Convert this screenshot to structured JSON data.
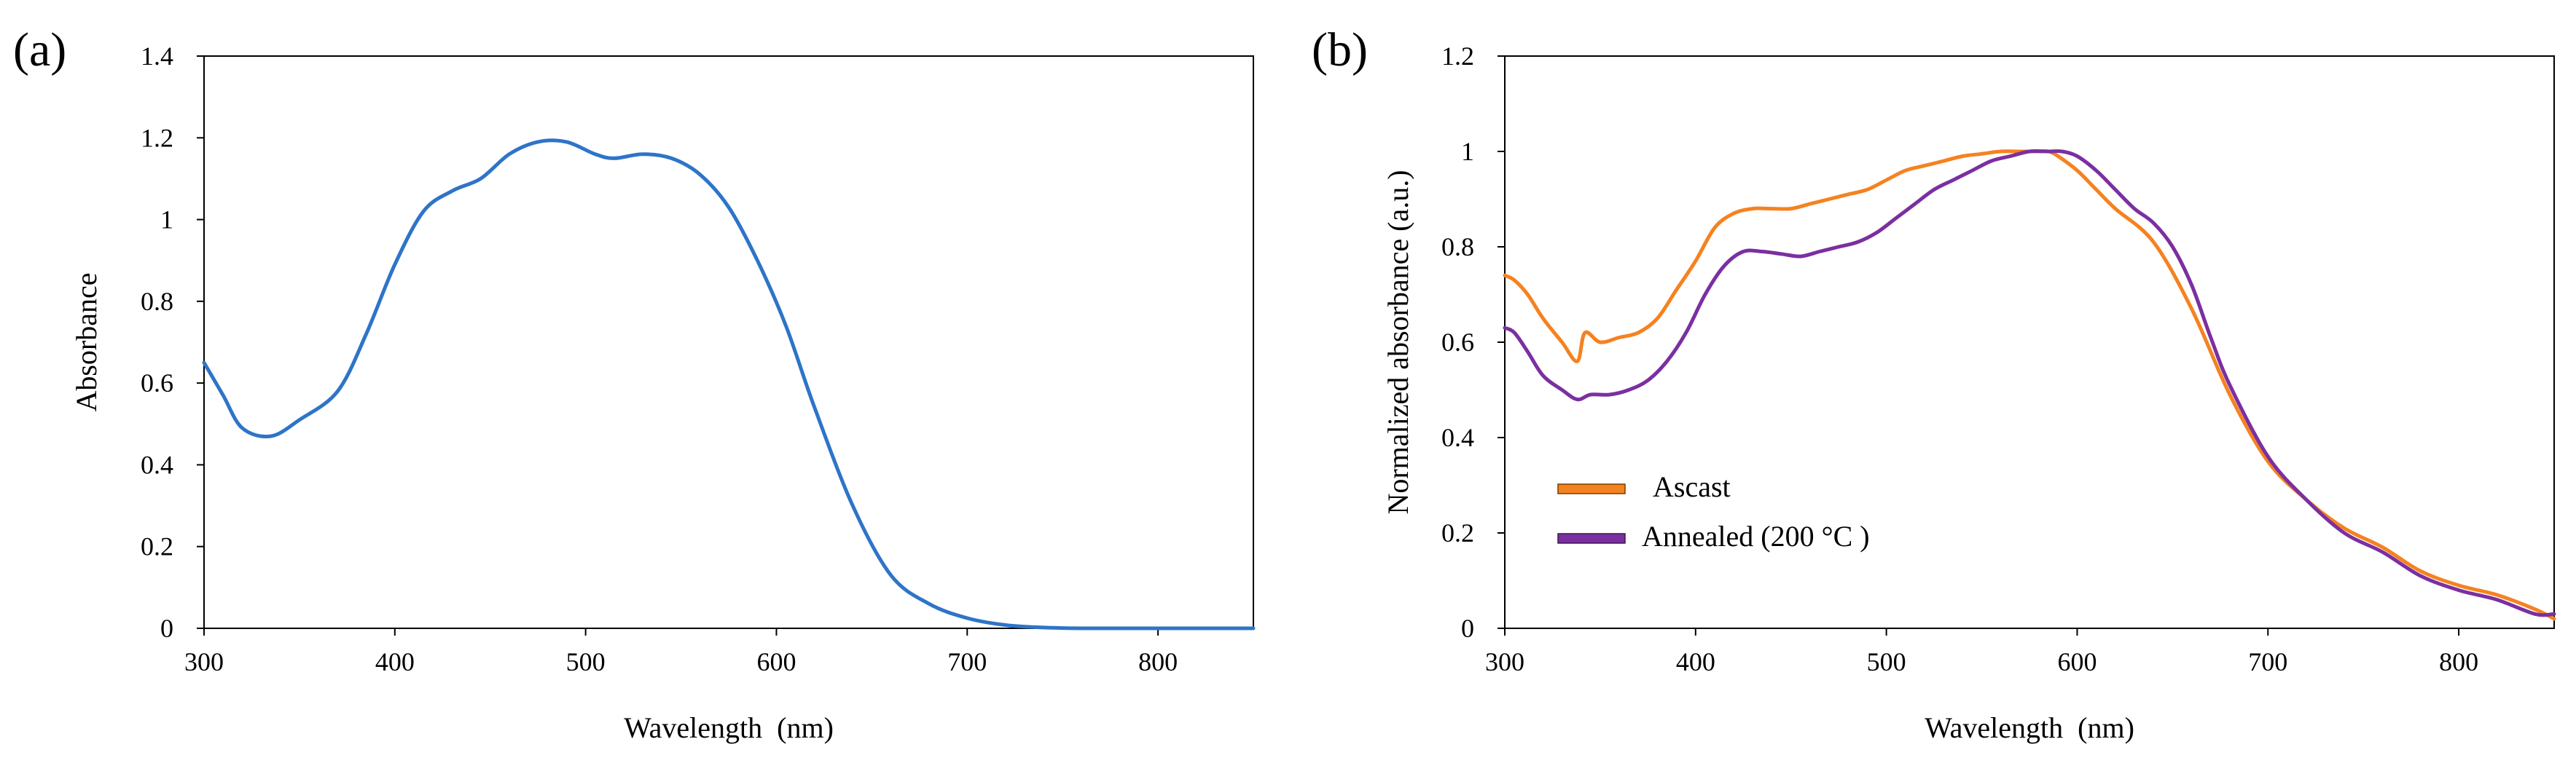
{
  "chart_data": [
    {
      "panel_label": "(a)",
      "type": "line",
      "title": "",
      "xlabel": "Wavelength  (nm)",
      "ylabel": "Absorbance",
      "xlim": [
        300,
        850
      ],
      "ylim": [
        0,
        1.4
      ],
      "xticks": [
        300,
        400,
        500,
        600,
        700,
        800
      ],
      "yticks": [
        0,
        0.2,
        0.4,
        0.6,
        0.8,
        1,
        1.2,
        1.4
      ],
      "grid": false,
      "series": [
        {
          "name": "Absorbance",
          "color": "#2E74C8",
          "x": [
            300,
            310,
            320,
            335,
            350,
            370,
            385,
            400,
            415,
            430,
            445,
            460,
            475,
            490,
            505,
            515,
            530,
            545,
            560,
            575,
            590,
            605,
            620,
            640,
            660,
            680,
            700,
            720,
            740,
            760,
            800,
            850
          ],
          "y": [
            0.65,
            0.57,
            0.49,
            0.47,
            0.51,
            0.58,
            0.72,
            0.89,
            1.02,
            1.07,
            1.1,
            1.16,
            1.19,
            1.19,
            1.16,
            1.15,
            1.16,
            1.15,
            1.11,
            1.03,
            0.9,
            0.74,
            0.54,
            0.3,
            0.13,
            0.06,
            0.025,
            0.008,
            0.002,
            0.0,
            0.0,
            0.0
          ]
        }
      ]
    },
    {
      "panel_label": "(b)",
      "type": "line",
      "title": "",
      "xlabel": "Wavelength  (nm)",
      "ylabel": "Normalized absorbance (a.u.)",
      "xlim": [
        300,
        850
      ],
      "ylim": [
        0,
        1.2
      ],
      "xticks": [
        300,
        400,
        500,
        600,
        700,
        800
      ],
      "yticks": [
        0,
        0.2,
        0.4,
        0.6,
        0.8,
        1,
        1.2
      ],
      "grid": false,
      "legend_position": "lower-left",
      "series": [
        {
          "name": "Ascast",
          "color": "#F58220",
          "x": [
            300,
            305,
            312,
            320,
            330,
            338,
            342,
            350,
            360,
            370,
            380,
            390,
            400,
            410,
            420,
            430,
            440,
            450,
            460,
            470,
            480,
            490,
            500,
            510,
            520,
            530,
            540,
            550,
            560,
            570,
            580,
            585,
            590,
            600,
            610,
            620,
            640,
            660,
            680,
            700,
            720,
            740,
            760,
            780,
            800,
            820,
            840,
            850
          ],
          "y": [
            0.74,
            0.73,
            0.7,
            0.65,
            0.6,
            0.56,
            0.62,
            0.6,
            0.61,
            0.62,
            0.65,
            0.71,
            0.77,
            0.84,
            0.87,
            0.88,
            0.88,
            0.88,
            0.89,
            0.9,
            0.91,
            0.92,
            0.94,
            0.96,
            0.97,
            0.98,
            0.99,
            0.995,
            1.0,
            1.0,
            1.0,
            1.0,
            0.99,
            0.96,
            0.92,
            0.88,
            0.81,
            0.67,
            0.49,
            0.35,
            0.27,
            0.21,
            0.17,
            0.12,
            0.09,
            0.07,
            0.04,
            0.02
          ]
        },
        {
          "name": "Annealed (200 °C )",
          "color": "#7B2FA0",
          "x": [
            300,
            305,
            312,
            320,
            330,
            338,
            345,
            355,
            365,
            375,
            385,
            395,
            405,
            415,
            425,
            435,
            445,
            455,
            465,
            475,
            485,
            495,
            505,
            515,
            525,
            535,
            545,
            555,
            565,
            575,
            585,
            592,
            600,
            610,
            620,
            630,
            640,
            650,
            660,
            670,
            680,
            700,
            720,
            740,
            760,
            780,
            800,
            820,
            840,
            850
          ],
          "y": [
            0.63,
            0.62,
            0.58,
            0.53,
            0.5,
            0.48,
            0.49,
            0.49,
            0.5,
            0.52,
            0.56,
            0.62,
            0.7,
            0.76,
            0.79,
            0.79,
            0.785,
            0.78,
            0.79,
            0.8,
            0.81,
            0.83,
            0.86,
            0.89,
            0.92,
            0.94,
            0.96,
            0.98,
            0.99,
            1.0,
            1.0,
            1.0,
            0.99,
            0.96,
            0.92,
            0.88,
            0.85,
            0.8,
            0.72,
            0.61,
            0.51,
            0.36,
            0.27,
            0.2,
            0.16,
            0.11,
            0.08,
            0.06,
            0.03,
            0.03
          ]
        }
      ]
    }
  ]
}
